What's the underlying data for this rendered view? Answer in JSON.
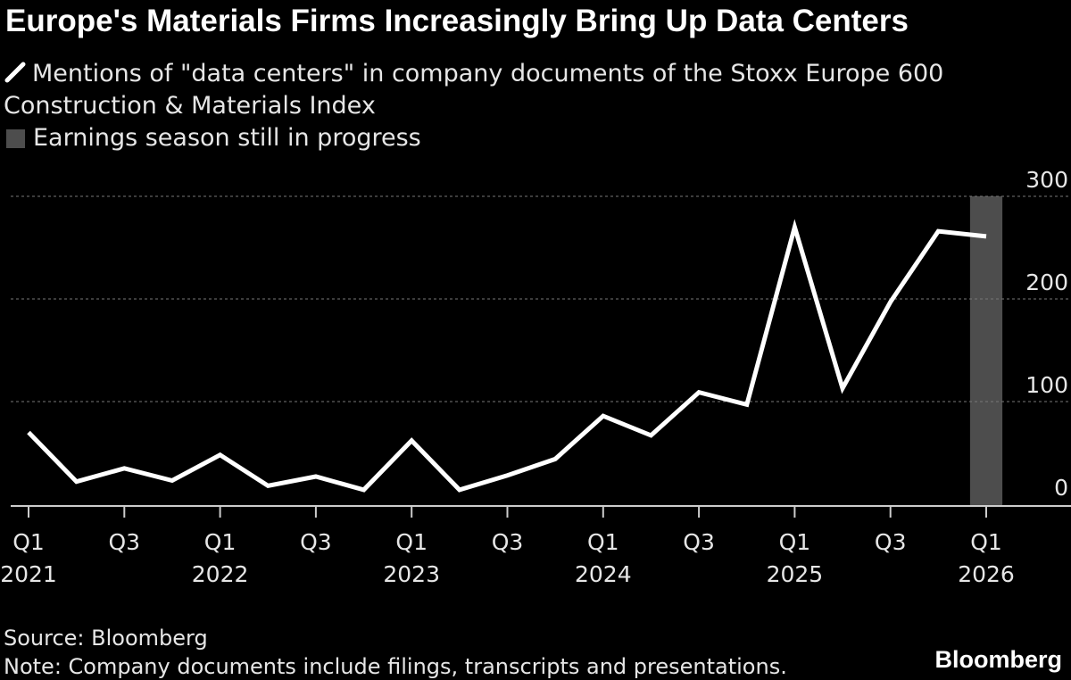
{
  "title": "Europe's Materials Firms Increasingly Bring Up Data Centers",
  "legend": {
    "line_label_1": "Mentions of \"data centers\" in company documents of the Stoxx Europe 600",
    "line_label_2": "Construction & Materials Index",
    "shade_label": "Earnings season still in progress"
  },
  "source": "Source: Bloomberg",
  "note": "Note: Company documents include filings, transcripts and presentations.",
  "brand": "Bloomberg",
  "colors": {
    "background": "#000000",
    "line": "#ffffff",
    "shade": "#4d4d4d",
    "grid": "#777777"
  },
  "chart_data": {
    "type": "line",
    "title": "Europe's Materials Firms Increasingly Bring Up Data Centers",
    "xlabel": "",
    "ylabel": "",
    "ylim": [
      0,
      300
    ],
    "yticks": [
      "300",
      "200",
      "100",
      "0"
    ],
    "ytick_values": [
      300,
      200,
      100,
      0
    ],
    "grid": true,
    "x": [
      "Q1 2021",
      "Q2 2021",
      "Q3 2021",
      "Q4 2021",
      "Q1 2022",
      "Q2 2022",
      "Q3 2022",
      "Q4 2022",
      "Q1 2023",
      "Q2 2023",
      "Q3 2023",
      "Q4 2023",
      "Q1 2024",
      "Q2 2024",
      "Q3 2024",
      "Q4 2024",
      "Q1 2025",
      "Q2 2025",
      "Q3 2025",
      "Q4 2025",
      "Q1 2026"
    ],
    "x_tick_labels": [
      {
        "index": 0,
        "q": "Q1",
        "year": "2021"
      },
      {
        "index": 2,
        "q": "Q3",
        "year": ""
      },
      {
        "index": 4,
        "q": "Q1",
        "year": "2022"
      },
      {
        "index": 6,
        "q": "Q3",
        "year": ""
      },
      {
        "index": 8,
        "q": "Q1",
        "year": "2023"
      },
      {
        "index": 10,
        "q": "Q3",
        "year": ""
      },
      {
        "index": 12,
        "q": "Q1",
        "year": "2024"
      },
      {
        "index": 14,
        "q": "Q3",
        "year": ""
      },
      {
        "index": 16,
        "q": "Q1",
        "year": "2025"
      },
      {
        "index": 18,
        "q": "Q3",
        "year": ""
      },
      {
        "index": 20,
        "q": "Q1",
        "year": "2026"
      }
    ],
    "series": [
      {
        "name": "Mentions of \"data centers\" in company documents of the Stoxx Europe 600 Construction & Materials Index",
        "values": [
          70,
          22,
          35,
          23,
          48,
          18,
          27,
          14,
          62,
          14,
          28,
          44,
          86,
          67,
          109,
          97,
          270,
          113,
          197,
          266,
          261
        ]
      }
    ],
    "shaded_region": {
      "label": "Earnings season still in progress",
      "start_index": 19.7,
      "end_index": 20.3
    }
  }
}
